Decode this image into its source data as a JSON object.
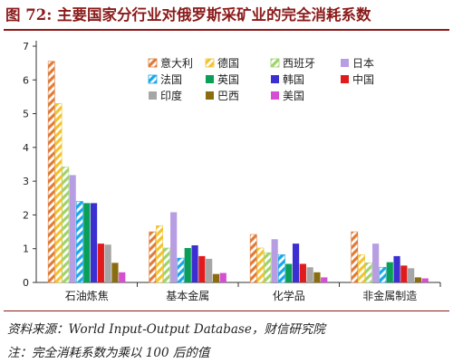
{
  "figure": {
    "title": "图 72: 主要国家分行业对俄罗斯采矿业的完全消耗系数",
    "source": "资料来源：World Input-Output Database，财信研究院",
    "note": "注：完全消耗系数为乘以 100 后的值"
  },
  "chart_data": {
    "type": "bar",
    "categories": [
      "石油炼焦",
      "基本金属",
      "化学品",
      "非金属制造"
    ],
    "ylim": [
      0,
      7
    ],
    "yticks": [
      0,
      1,
      2,
      3,
      4,
      5,
      6,
      7
    ],
    "grid": false,
    "legend_position": "top-right",
    "series": [
      {
        "name": "意大利",
        "color": "#e07b39",
        "pattern": "diagonal-stripes",
        "values": [
          6.55,
          1.5,
          1.42,
          1.5
        ]
      },
      {
        "name": "德国",
        "color": "#f2c230",
        "pattern": "diagonal-stripes",
        "values": [
          5.3,
          1.68,
          1.02,
          0.82
        ]
      },
      {
        "name": "西班牙",
        "color": "#9fd36b",
        "pattern": "diagonal-stripes",
        "values": [
          3.42,
          1.02,
          0.88,
          0.58
        ]
      },
      {
        "name": "日本",
        "color": "#b79ee2",
        "pattern": "solid",
        "values": [
          3.18,
          2.08,
          1.28,
          1.15
        ]
      },
      {
        "name": "法国",
        "color": "#1aa7e8",
        "pattern": "diagonal-stripes",
        "values": [
          2.4,
          0.72,
          0.82,
          0.45
        ]
      },
      {
        "name": "英国",
        "color": "#0a9e58",
        "pattern": "solid",
        "values": [
          2.35,
          1.02,
          0.55,
          0.6
        ]
      },
      {
        "name": "韩国",
        "color": "#3b2fd1",
        "pattern": "solid",
        "values": [
          2.35,
          1.1,
          1.15,
          0.78
        ]
      },
      {
        "name": "中国",
        "color": "#e11b1b",
        "pattern": "solid",
        "values": [
          1.15,
          0.78,
          0.55,
          0.5
        ]
      },
      {
        "name": "印度",
        "color": "#a6a6a6",
        "pattern": "solid",
        "values": [
          1.12,
          0.7,
          0.45,
          0.42
        ]
      },
      {
        "name": "巴西",
        "color": "#8a6d0f",
        "pattern": "solid",
        "values": [
          0.58,
          0.25,
          0.3,
          0.15
        ]
      },
      {
        "name": "美国",
        "color": "#d44fd1",
        "pattern": "solid",
        "values": [
          0.3,
          0.28,
          0.15,
          0.12
        ]
      }
    ]
  }
}
